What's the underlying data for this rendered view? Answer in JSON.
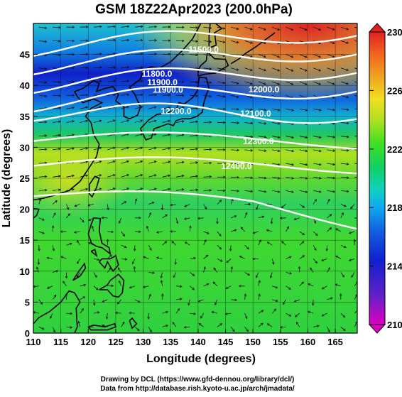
{
  "title": "GSM 18Z22Apr2023 (200.0hPa)",
  "x_axis": {
    "label": "Longitude (degrees)",
    "ticks": [
      "110",
      "115",
      "120",
      "125",
      "130",
      "135",
      "140",
      "145",
      "150",
      "155",
      "160",
      "165"
    ]
  },
  "y_axis": {
    "label": "Latitude  (degrees)",
    "ticks": [
      "0",
      "5",
      "10",
      "15",
      "20",
      "25",
      "30",
      "35",
      "40",
      "45"
    ]
  },
  "colorbar": {
    "ticks": [
      "210",
      "214",
      "218",
      "222",
      "226",
      "230"
    ],
    "colors": [
      "#e000c0",
      "#6020c8",
      "#1020d0",
      "#1060e0",
      "#10a8f0",
      "#10d0c0",
      "#10d060",
      "#40e020",
      "#b0e020",
      "#f0e020",
      "#f0a020",
      "#f06020",
      "#e02020"
    ]
  },
  "contour_labels": [
    "11500.0",
    "11800.0",
    "11900.0",
    "11900.0",
    "12000.0",
    "12100.0",
    "12200.0",
    "12300.0",
    "12400.0"
  ],
  "credits": {
    "line1": "Drawing by DCL (https://www.gfd-dennou.org/library/dcl/)",
    "line2": "Data from http://database.rish.kyoto-u.ac.jp/arch/jmadata/"
  }
}
